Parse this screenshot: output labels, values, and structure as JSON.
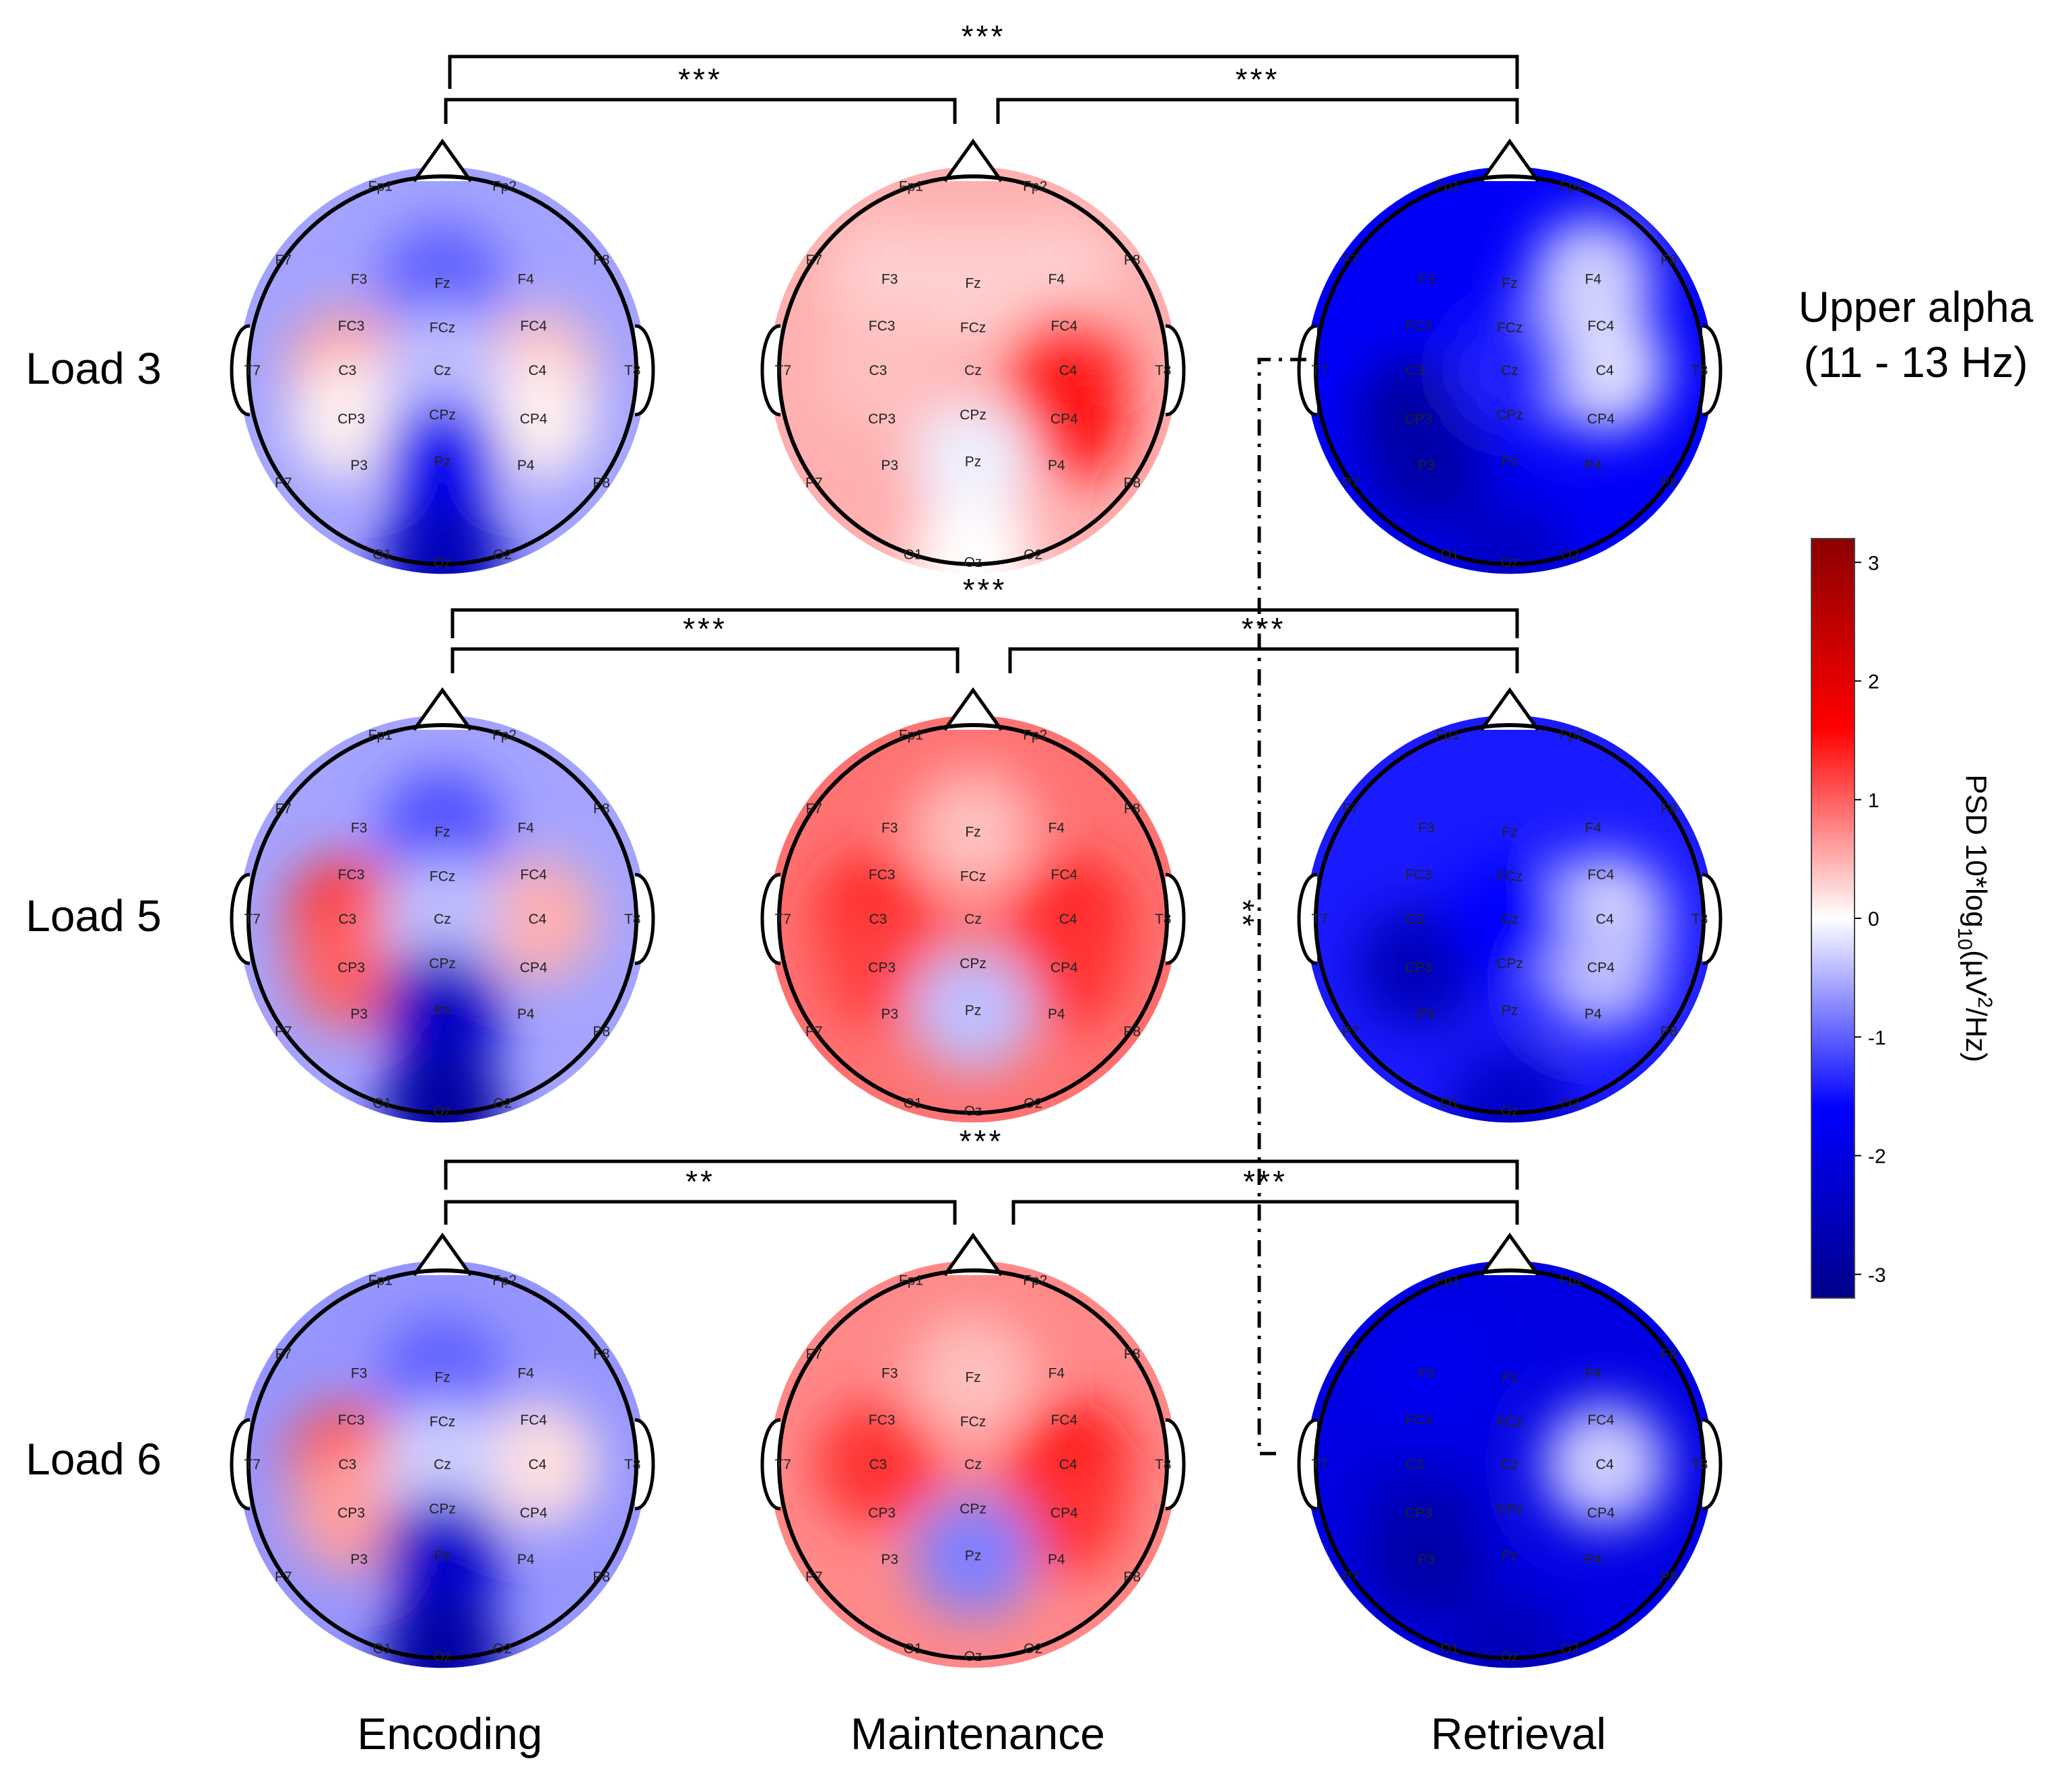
{
  "band_label": [
    "Upper alpha",
    "(11 - 13 Hz)"
  ],
  "row_labels": [
    "Load 3",
    "Load 5",
    "Load 6"
  ],
  "column_labels": [
    "Encoding",
    "Maintenance",
    "Retrieval"
  ],
  "electrodes": [
    "Fp1",
    "Fp2",
    "F7",
    "F3",
    "Fz",
    "F4",
    "F8",
    "FC3",
    "FCz",
    "FC4",
    "T7",
    "C3",
    "Cz",
    "C4",
    "T8",
    "CP3",
    "CPz",
    "CP4",
    "P7",
    "P3",
    "Pz",
    "P4",
    "P8",
    "O1",
    "Oz",
    "O2"
  ],
  "colorbar": {
    "label": "PSD 10*log10(µV²/Hz)",
    "range": [
      -3.2,
      3.2
    ],
    "ticks": [
      "3",
      "2",
      "1",
      "0",
      "-1",
      "-2",
      "-3"
    ],
    "colors": [
      "#8b0000",
      "#ff0000",
      "#ffffff",
      "#0000ff",
      "#00008b"
    ]
  },
  "topomaps": [
    {
      "row": "Load 3",
      "column": "Encoding",
      "C3": 0.6,
      "C4": 0.4,
      "CP3": 0.1,
      "CP4": 0.1,
      "Fz": -1.0,
      "Cz": -0.4,
      "Pz": -1.8,
      "Oz": -2.6
    },
    {
      "row": "Load 3",
      "column": "Maintenance",
      "F3": 0.3,
      "Fz": 0.3,
      "F4": 0.3,
      "C3": 0.4,
      "C4": 1.3,
      "CP4": 1.5,
      "Pz": -0.1,
      "Oz": 0.0
    },
    {
      "row": "Load 3",
      "column": "Retrieval",
      "F4": -0.3,
      "C4": -0.2,
      "CP3": -3.0,
      "P3": -2.8,
      "Cz": -1.4,
      "Oz": -2.4
    },
    {
      "row": "Load 5",
      "column": "Encoding",
      "C3": 1.3,
      "C4": 0.5,
      "CP3": 1.0,
      "Fz": -1.1,
      "Cz": -0.4,
      "Pz": -2.4,
      "Oz": -2.9
    },
    {
      "row": "Load 5",
      "column": "Maintenance",
      "Fz": 0.4,
      "C3": 1.4,
      "CP3": 1.2,
      "C4": 1.4,
      "CP4": 1.3,
      "Pz": -0.4
    },
    {
      "row": "Load 5",
      "column": "Retrieval",
      "C4": -0.2,
      "CP4": -0.4,
      "CP3": -2.6,
      "Cz": -1.6,
      "Oz": -2.4
    },
    {
      "row": "Load 6",
      "column": "Encoding",
      "C3": 1.1,
      "C4": 0.2,
      "CP3": 0.6,
      "Fz": -1.0,
      "Cz": -0.3,
      "Pz": -2.3,
      "Oz": -2.9
    },
    {
      "row": "Load 6",
      "column": "Maintenance",
      "Fz": 0.4,
      "C3": 1.3,
      "C4": 1.5,
      "CP4": 1.3,
      "Pz": -0.8
    },
    {
      "row": "Load 6",
      "column": "Retrieval",
      "C4": -0.3,
      "F3": -1.8,
      "CP3": -2.4,
      "P3": -2.8,
      "Oz": -2.6
    }
  ],
  "comparisons": [
    {
      "row": "Load 3",
      "from": "Encoding",
      "to": "Retrieval",
      "sig": "***"
    },
    {
      "row": "Load 3",
      "from": "Encoding",
      "to": "Maintenance",
      "sig": "***"
    },
    {
      "row": "Load 3",
      "from": "Maintenance",
      "to": "Retrieval",
      "sig": "***"
    },
    {
      "row": "Load 5",
      "from": "Encoding",
      "to": "Retrieval",
      "sig": "***"
    },
    {
      "row": "Load 5",
      "from": "Encoding",
      "to": "Maintenance",
      "sig": "***"
    },
    {
      "row": "Load 5",
      "from": "Maintenance",
      "to": "Retrieval",
      "sig": "***"
    },
    {
      "row": "Load 6",
      "from": "Encoding",
      "to": "Retrieval",
      "sig": "***"
    },
    {
      "row": "Load 6",
      "from": "Encoding",
      "to": "Maintenance",
      "sig": "**"
    },
    {
      "row": "Load 6",
      "from": "Maintenance",
      "to": "Retrieval",
      "sig": "***"
    },
    {
      "between": [
        "Load 3",
        "Load 6"
      ],
      "column": "Retrieval",
      "sig": "**"
    }
  ]
}
